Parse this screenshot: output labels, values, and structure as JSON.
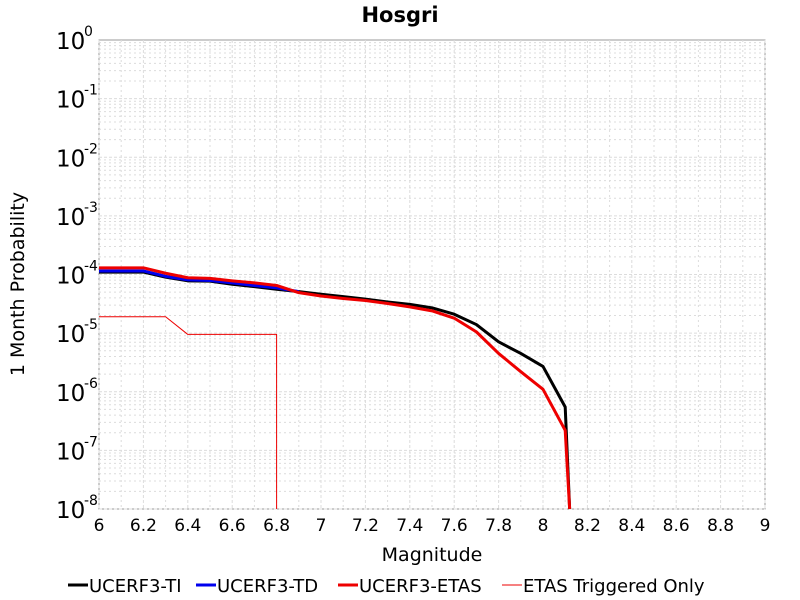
{
  "chart_data": {
    "type": "line",
    "title": "Hosgri",
    "xlabel": "Magnitude",
    "ylabel": "1 Month Probability",
    "xlim": [
      6,
      9
    ],
    "ylim": [
      1e-08,
      1
    ],
    "yscale": "log",
    "x_ticks": [
      "6",
      "6.2",
      "6.4",
      "6.6",
      "6.8",
      "7",
      "7.2",
      "7.4",
      "7.6",
      "7.8",
      "8",
      "8.2",
      "8.4",
      "8.6",
      "8.8",
      "9"
    ],
    "y_ticks": [
      {
        "base": "10",
        "exp": "0"
      },
      {
        "base": "10",
        "exp": "-1"
      },
      {
        "base": "10",
        "exp": "-2"
      },
      {
        "base": "10",
        "exp": "-3"
      },
      {
        "base": "10",
        "exp": "-4"
      },
      {
        "base": "10",
        "exp": "-5"
      },
      {
        "base": "10",
        "exp": "-6"
      },
      {
        "base": "10",
        "exp": "-7"
      },
      {
        "base": "10",
        "exp": "-8"
      }
    ],
    "grid": true,
    "legend_position": "bottom",
    "series": [
      {
        "name": "UCERF3-TI",
        "color": "#000000",
        "line_width": 3,
        "x": [
          6.0,
          6.1,
          6.2,
          6.3,
          6.4,
          6.5,
          6.6,
          6.7,
          6.8,
          6.9,
          7.0,
          7.1,
          7.2,
          7.3,
          7.4,
          7.5,
          7.6,
          7.7,
          7.8,
          7.9,
          8.0,
          8.1,
          8.12
        ],
        "y": [
          0.00011,
          0.00011,
          0.00011,
          9e-05,
          7.8e-05,
          7.7e-05,
          6.8e-05,
          6.2e-05,
          5.6e-05,
          5.1e-05,
          4.6e-05,
          4.2e-05,
          3.8e-05,
          3.4e-05,
          3.1e-05,
          2.7e-05,
          2.1e-05,
          1.4e-05,
          7.1e-06,
          4.5e-06,
          2.7e-06,
          5.5e-07,
          1e-08
        ]
      },
      {
        "name": "UCERF3-TD",
        "color": "#0000ee",
        "line_width": 3,
        "x": [
          6.0,
          6.1,
          6.2,
          6.3,
          6.4,
          6.5,
          6.6,
          6.7,
          6.8,
          6.9
        ],
        "y": [
          0.000115,
          0.000115,
          0.000115,
          9.3e-05,
          8.1e-05,
          7.9e-05,
          7.2e-05,
          6.5e-05,
          5.9e-05,
          5.1e-05
        ]
      },
      {
        "name": "UCERF3-ETAS",
        "color": "#ee0000",
        "line_width": 3,
        "x": [
          6.0,
          6.1,
          6.2,
          6.3,
          6.4,
          6.5,
          6.6,
          6.7,
          6.8,
          6.9,
          7.0,
          7.1,
          7.2,
          7.3,
          7.4,
          7.5,
          7.6,
          7.7,
          7.8,
          7.9,
          8.0,
          8.1,
          8.12
        ],
        "y": [
          0.00013,
          0.00013,
          0.00013,
          0.000105,
          8.8e-05,
          8.6e-05,
          7.8e-05,
          7.2e-05,
          6.5e-05,
          4.9e-05,
          4.3e-05,
          3.9e-05,
          3.6e-05,
          3.2e-05,
          2.8e-05,
          2.4e-05,
          1.8e-05,
          1.05e-05,
          4.5e-06,
          2.2e-06,
          1.1e-06,
          2.2e-07,
          1e-08
        ]
      },
      {
        "name": "ETAS Triggered Only",
        "color": "#ee0000",
        "line_width": 1,
        "x": [
          6.0,
          6.1,
          6.2,
          6.3,
          6.4,
          6.5,
          6.6,
          6.7,
          6.8,
          6.8
        ],
        "y": [
          1.9e-05,
          1.9e-05,
          1.9e-05,
          1.9e-05,
          9.5e-06,
          9.5e-06,
          9.5e-06,
          9.5e-06,
          9.5e-06,
          1e-08
        ]
      }
    ]
  }
}
